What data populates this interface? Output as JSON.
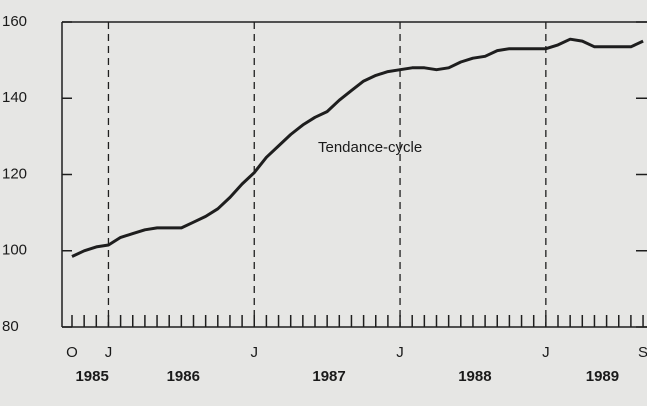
{
  "chart_data": {
    "type": "line",
    "annotation": "Tendance-cycle",
    "categories": [
      "O",
      null,
      null,
      "J",
      null,
      null,
      null,
      null,
      null,
      null,
      null,
      null,
      null,
      null,
      null,
      "J",
      null,
      null,
      null,
      null,
      null,
      null,
      null,
      null,
      null,
      null,
      null,
      "J",
      null,
      null,
      null,
      null,
      null,
      null,
      null,
      null,
      null,
      null,
      null,
      "J",
      null,
      null,
      null,
      null,
      null,
      null,
      null,
      "S"
    ],
    "years": [
      "1985",
      "1986",
      "1987",
      "1988",
      "1989"
    ],
    "values": [
      98.5,
      100,
      101,
      101.5,
      103.5,
      104.5,
      105.5,
      106,
      106,
      106,
      107.5,
      109,
      111,
      114,
      117.5,
      120.5,
      124.5,
      127.5,
      130.5,
      133,
      135,
      136.5,
      139.5,
      142,
      144.5,
      146,
      147,
      147.5,
      148,
      148,
      147.5,
      148,
      149.5,
      150.5,
      151,
      152.5,
      153,
      153,
      153,
      153,
      154,
      155.5,
      155,
      153.5,
      153.5,
      153.5,
      153.5,
      155
    ],
    "color": "#1e1e1e",
    "ylim": [
      80,
      160
    ],
    "yticks": [
      80,
      100,
      120,
      140,
      160
    ]
  }
}
